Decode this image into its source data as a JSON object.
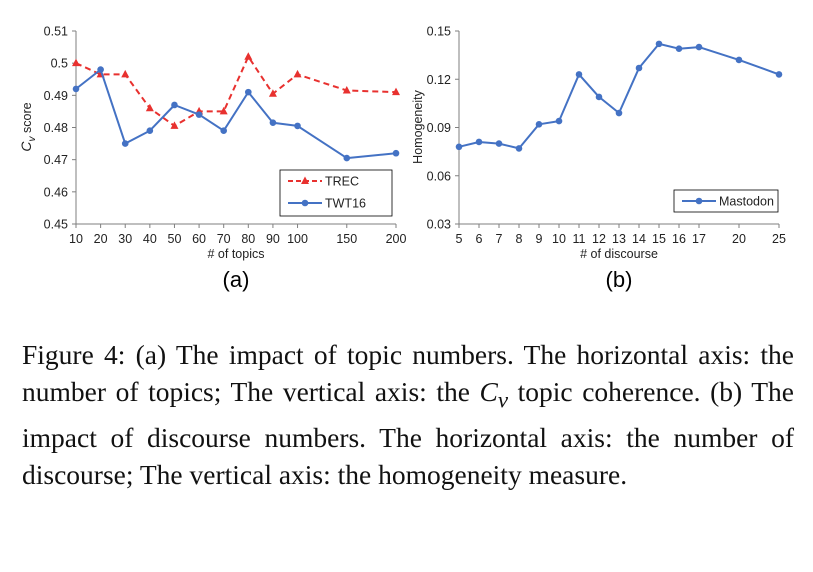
{
  "chart_data": [
    {
      "type": "line",
      "panel_label": "(a)",
      "xlabel": "# of topics",
      "ylabel": "Cv score",
      "ylabel_main": "C",
      "ylabel_sub": "v",
      "ylabel_rest": " score",
      "categories": [
        "10",
        "20",
        "30",
        "40",
        "50",
        "60",
        "70",
        "80",
        "90",
        "100",
        "150",
        "200"
      ],
      "x": [
        10,
        20,
        30,
        40,
        50,
        60,
        70,
        80,
        90,
        100,
        150,
        200
      ],
      "x_positions": [
        0,
        1,
        2,
        3,
        4,
        5,
        6,
        7,
        8,
        9,
        11,
        13
      ],
      "yticks": [
        "0.45",
        "0.46",
        "0.47",
        "0.48",
        "0.49",
        "0.5",
        "0.51"
      ],
      "ylim": [
        0.45,
        0.51
      ],
      "series": [
        {
          "name": "TREC",
          "color": "#e8312f",
          "dashed": true,
          "marker": "triangle",
          "values": [
            0.5,
            0.4965,
            0.4965,
            0.486,
            0.4805,
            0.485,
            0.485,
            0.502,
            0.4905,
            0.4965,
            0.4915,
            0.491
          ]
        },
        {
          "name": "TWT16",
          "color": "#4472c4",
          "dashed": false,
          "marker": "circle",
          "values": [
            0.492,
            0.498,
            0.475,
            0.479,
            0.487,
            0.484,
            0.479,
            0.491,
            0.4815,
            0.4805,
            0.4705,
            0.472
          ]
        }
      ],
      "legend_position": "bottom-right",
      "grid": false
    },
    {
      "type": "line",
      "panel_label": "(b)",
      "xlabel": "# of discourse",
      "ylabel": "Homogeneity",
      "categories": [
        "5",
        "6",
        "7",
        "8",
        "9",
        "10",
        "11",
        "12",
        "13",
        "14",
        "15",
        "16",
        "17",
        "20",
        "25"
      ],
      "x": [
        5,
        6,
        7,
        8,
        9,
        10,
        11,
        12,
        13,
        14,
        15,
        16,
        17,
        20,
        25
      ],
      "x_positions": [
        0,
        1,
        2,
        3,
        4,
        5,
        6,
        7,
        8,
        9,
        10,
        11,
        12,
        14,
        16
      ],
      "yticks": [
        "0.03",
        "0.06",
        "0.09",
        "0.12",
        "0.15"
      ],
      "ylim": [
        0.03,
        0.15
      ],
      "series": [
        {
          "name": "Mastodon",
          "color": "#4472c4",
          "dashed": false,
          "marker": "circle",
          "values": [
            0.078,
            0.081,
            0.08,
            0.077,
            0.092,
            0.094,
            0.123,
            0.109,
            0.099,
            0.127,
            0.142,
            0.139,
            0.14,
            0.132,
            0.123
          ]
        }
      ],
      "legend_position": "bottom-right",
      "grid": false
    }
  ],
  "caption": {
    "prefix": "Figure 4: (a) The impact of topic numbers. The horizontal axis: the number of topics; The vertical axis: the ",
    "cv_main": "C",
    "cv_sub": "v",
    "suffix": " topic coherence. (b) The impact of discourse numbers. The horizontal axis: the number of discourse; The vertical axis: the homogeneity measure."
  }
}
